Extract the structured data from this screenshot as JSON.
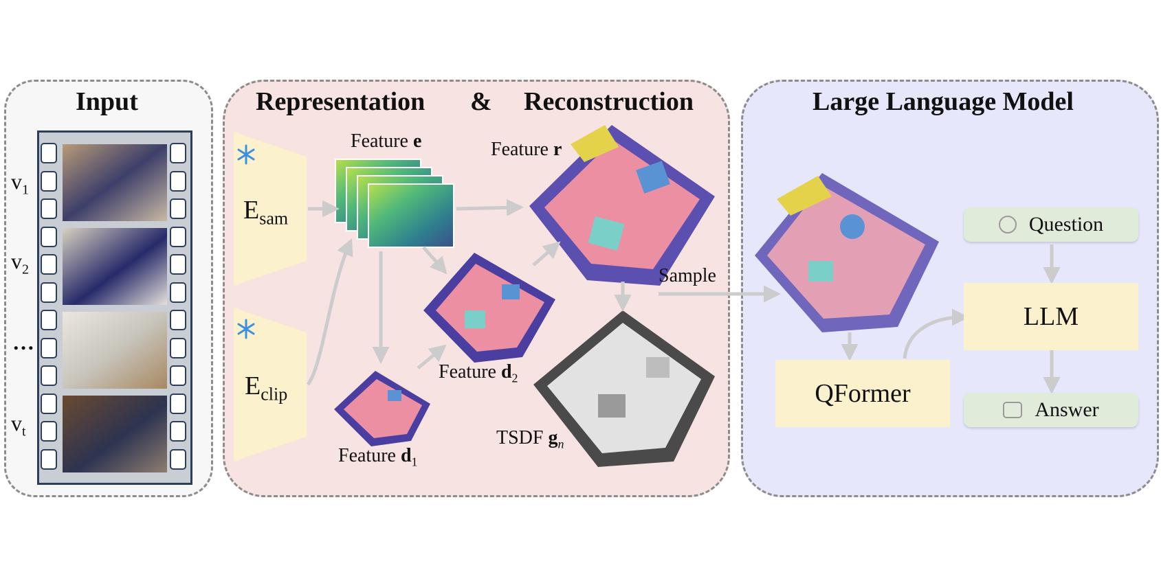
{
  "input": {
    "title": "Input",
    "frames": [
      {
        "label_base": "v",
        "label_sub": "1"
      },
      {
        "label_base": "v",
        "label_sub": "2"
      },
      {
        "label_base": "…",
        "label_sub": ""
      },
      {
        "label_base": "v",
        "label_sub": "t"
      }
    ]
  },
  "representation": {
    "title_left": "Representation",
    "title_amp": "&",
    "title_right": "Reconstruction",
    "encoders": [
      {
        "base": "E",
        "sub": "sam",
        "frozen_icon": "snowflake-icon"
      },
      {
        "base": "E",
        "sub": "clip",
        "frozen_icon": "snowflake-icon"
      }
    ],
    "feature_e": {
      "prefix": "Feature ",
      "symbol": "e"
    },
    "feature_r": {
      "prefix": "Feature ",
      "symbol": "r"
    },
    "feature_d1": {
      "prefix": "Feature ",
      "symbol": "d",
      "sub": "1"
    },
    "feature_d2": {
      "prefix": "Feature ",
      "symbol": "d",
      "sub": "2"
    },
    "tsdf": {
      "prefix": "TSDF ",
      "symbol": "g",
      "sub": "n"
    },
    "sample_label": "Sample"
  },
  "llm_panel": {
    "title": "Large Language Model",
    "question": {
      "label": "Question",
      "icon": "person-icon"
    },
    "llm": {
      "label": "LLM",
      "frozen_icon": "snowflake-icon"
    },
    "qformer": {
      "label": "QFormer"
    },
    "answer": {
      "label": "Answer",
      "icon": "robot-icon"
    }
  },
  "colors": {
    "arrow": "#cccccc",
    "encoder_fill": "#fbf1cc",
    "qformer_fill": "#fbf1cc",
    "qa_fill": "#e1ebd9",
    "snowflake": "#3d8fe0"
  }
}
